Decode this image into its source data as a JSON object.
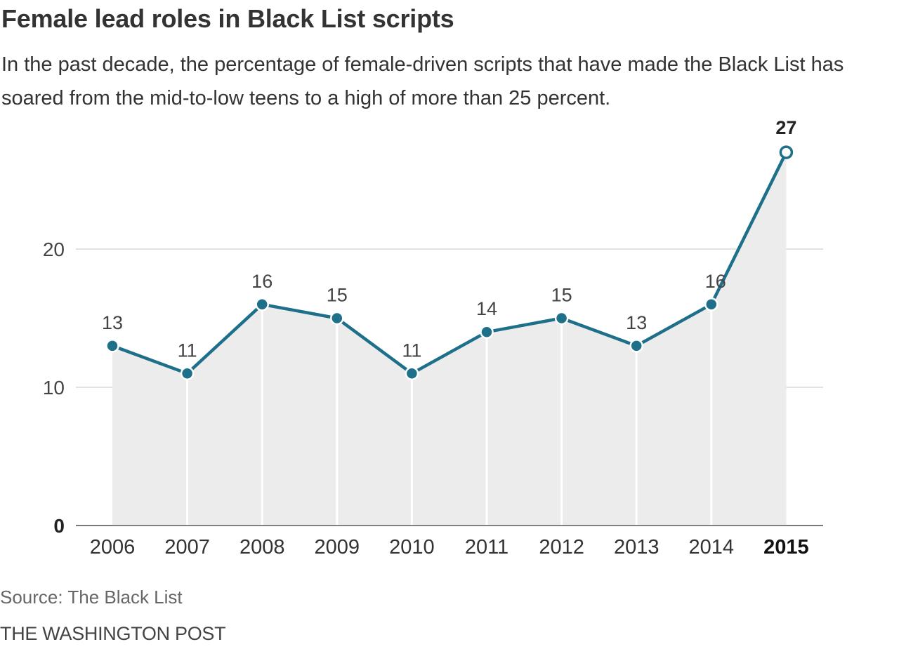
{
  "header": {
    "title": "Female lead roles in Black List scripts",
    "subtitle": "In the past decade, the percentage of female-driven scripts that have made the Black List has soared from the mid-to-low teens to a high of more than 25 percent."
  },
  "footer": {
    "source": "Source: The Black List",
    "credit": "THE WASHINGTON POST"
  },
  "colors": {
    "line": "#1d6f8a",
    "area": "#ececec",
    "grid": "#d8d8d8",
    "axis": "#666666"
  },
  "chart_data": {
    "type": "area",
    "title": "Female lead roles in Black List scripts",
    "xlabel": "",
    "ylabel": "",
    "categories": [
      "2006",
      "2007",
      "2008",
      "2009",
      "2010",
      "2011",
      "2012",
      "2013",
      "2014",
      "2015"
    ],
    "values": [
      13,
      11,
      16,
      15,
      11,
      14,
      15,
      13,
      16,
      27
    ],
    "y_ticks": [
      0,
      10,
      20
    ],
    "y_tick_labels": [
      "0",
      "10",
      "20"
    ],
    "ylim": [
      0,
      27
    ],
    "highlight_category": "2015",
    "grid": true,
    "legend": "none"
  }
}
